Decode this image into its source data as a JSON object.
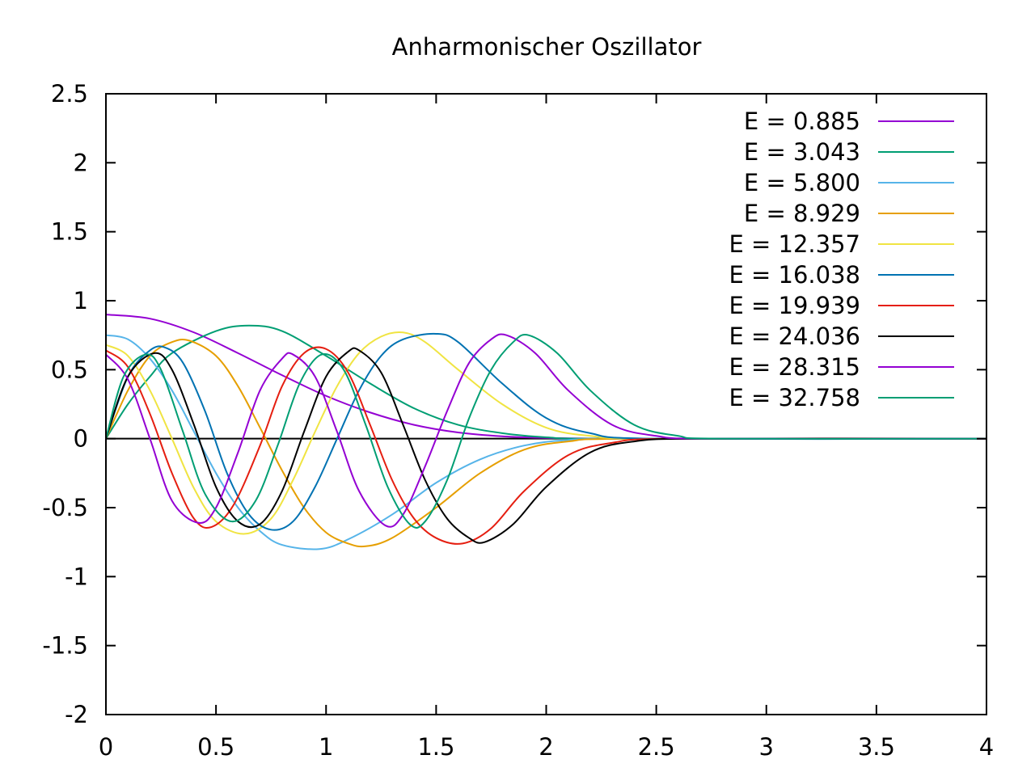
{
  "chart_data": {
    "type": "line",
    "title": "Anharmonischer Oszillator",
    "xlabel": "",
    "ylabel": "",
    "xlim": [
      0,
      4
    ],
    "ylim": [
      -2,
      2.5
    ],
    "x_ticks": [
      "0",
      "0.5",
      "1",
      "1.5",
      "2",
      "2.5",
      "3",
      "3.5",
      "4"
    ],
    "y_ticks": [
      "2.5",
      "2",
      "1.5",
      "1",
      "0.5",
      "0",
      "-0.5",
      "-1",
      "-1.5",
      "-2"
    ],
    "grid": false,
    "legend_position": "top-right",
    "zero_line": true,
    "series": [
      {
        "name": "E = 0.885",
        "color": "#9400d3",
        "points": [
          [
            0,
            0.9
          ],
          [
            0.2,
            0.87
          ],
          [
            0.4,
            0.77
          ],
          [
            0.6,
            0.62
          ],
          [
            0.8,
            0.46
          ],
          [
            1.0,
            0.31
          ],
          [
            1.2,
            0.19
          ],
          [
            1.4,
            0.1
          ],
          [
            1.6,
            0.045
          ],
          [
            1.8,
            0.017
          ],
          [
            2.0,
            0.005
          ],
          [
            2.2,
            0.001
          ],
          [
            2.5,
            0.0
          ],
          [
            4.0,
            0.0
          ]
        ]
      },
      {
        "name": "E = 3.043",
        "color": "#009e73",
        "points": [
          [
            0,
            0.0
          ],
          [
            0.1,
            0.25
          ],
          [
            0.2,
            0.45
          ],
          [
            0.3,
            0.62
          ],
          [
            0.5,
            0.78
          ],
          [
            0.65,
            0.82
          ],
          [
            0.8,
            0.78
          ],
          [
            1.0,
            0.6
          ],
          [
            1.2,
            0.4
          ],
          [
            1.4,
            0.22
          ],
          [
            1.6,
            0.1
          ],
          [
            1.8,
            0.04
          ],
          [
            2.0,
            0.01
          ],
          [
            2.3,
            0.0
          ],
          [
            4.0,
            0.0
          ]
        ]
      },
      {
        "name": "E = 5.800",
        "color": "#56b4e9",
        "points": [
          [
            0,
            0.75
          ],
          [
            0.1,
            0.72
          ],
          [
            0.2,
            0.58
          ],
          [
            0.3,
            0.35
          ],
          [
            0.4,
            0.05
          ],
          [
            0.5,
            -0.25
          ],
          [
            0.6,
            -0.5
          ],
          [
            0.7,
            -0.67
          ],
          [
            0.8,
            -0.77
          ],
          [
            0.97,
            -0.8
          ],
          [
            1.1,
            -0.73
          ],
          [
            1.3,
            -0.55
          ],
          [
            1.5,
            -0.32
          ],
          [
            1.7,
            -0.15
          ],
          [
            1.9,
            -0.05
          ],
          [
            2.1,
            -0.01
          ],
          [
            2.4,
            0.0
          ],
          [
            4.0,
            0.0
          ]
        ]
      },
      {
        "name": "E = 8.929",
        "color": "#e69f00",
        "points": [
          [
            0,
            0.0
          ],
          [
            0.1,
            0.35
          ],
          [
            0.2,
            0.6
          ],
          [
            0.3,
            0.7
          ],
          [
            0.38,
            0.71
          ],
          [
            0.5,
            0.6
          ],
          [
            0.6,
            0.38
          ],
          [
            0.7,
            0.08
          ],
          [
            0.8,
            -0.23
          ],
          [
            0.9,
            -0.5
          ],
          [
            1.0,
            -0.68
          ],
          [
            1.1,
            -0.76
          ],
          [
            1.18,
            -0.78
          ],
          [
            1.3,
            -0.72
          ],
          [
            1.5,
            -0.5
          ],
          [
            1.7,
            -0.25
          ],
          [
            1.9,
            -0.08
          ],
          [
            2.1,
            -0.02
          ],
          [
            2.4,
            0.0
          ],
          [
            4.0,
            0.0
          ]
        ]
      },
      {
        "name": "E = 12.357",
        "color": "#f0e442",
        "points": [
          [
            0,
            0.68
          ],
          [
            0.1,
            0.6
          ],
          [
            0.2,
            0.35
          ],
          [
            0.3,
            0.0
          ],
          [
            0.4,
            -0.36
          ],
          [
            0.5,
            -0.6
          ],
          [
            0.63,
            -0.69
          ],
          [
            0.75,
            -0.58
          ],
          [
            0.85,
            -0.3
          ],
          [
            0.95,
            0.05
          ],
          [
            1.05,
            0.38
          ],
          [
            1.15,
            0.62
          ],
          [
            1.25,
            0.74
          ],
          [
            1.35,
            0.77
          ],
          [
            1.45,
            0.7
          ],
          [
            1.6,
            0.5
          ],
          [
            1.8,
            0.25
          ],
          [
            2.0,
            0.08
          ],
          [
            2.2,
            0.02
          ],
          [
            2.5,
            0.0
          ],
          [
            4.0,
            0.0
          ]
        ]
      },
      {
        "name": "E = 16.038",
        "color": "#0072b2",
        "points": [
          [
            0,
            0.0
          ],
          [
            0.1,
            0.45
          ],
          [
            0.2,
            0.64
          ],
          [
            0.27,
            0.66
          ],
          [
            0.35,
            0.55
          ],
          [
            0.45,
            0.2
          ],
          [
            0.55,
            -0.25
          ],
          [
            0.65,
            -0.55
          ],
          [
            0.75,
            -0.66
          ],
          [
            0.85,
            -0.6
          ],
          [
            0.95,
            -0.35
          ],
          [
            1.05,
            0.0
          ],
          [
            1.15,
            0.35
          ],
          [
            1.25,
            0.6
          ],
          [
            1.35,
            0.72
          ],
          [
            1.5,
            0.76
          ],
          [
            1.6,
            0.7
          ],
          [
            1.8,
            0.4
          ],
          [
            2.0,
            0.15
          ],
          [
            2.2,
            0.04
          ],
          [
            2.5,
            0.0
          ],
          [
            4.0,
            0.0
          ]
        ]
      },
      {
        "name": "E = 19.939",
        "color": "#e51e10",
        "points": [
          [
            0,
            0.64
          ],
          [
            0.1,
            0.52
          ],
          [
            0.2,
            0.18
          ],
          [
            0.3,
            -0.25
          ],
          [
            0.4,
            -0.58
          ],
          [
            0.48,
            -0.64
          ],
          [
            0.58,
            -0.48
          ],
          [
            0.7,
            -0.05
          ],
          [
            0.8,
            0.38
          ],
          [
            0.9,
            0.62
          ],
          [
            1.0,
            0.65
          ],
          [
            1.1,
            0.48
          ],
          [
            1.2,
            0.1
          ],
          [
            1.3,
            -0.3
          ],
          [
            1.4,
            -0.58
          ],
          [
            1.5,
            -0.72
          ],
          [
            1.62,
            -0.76
          ],
          [
            1.75,
            -0.65
          ],
          [
            1.9,
            -0.38
          ],
          [
            2.1,
            -0.12
          ],
          [
            2.3,
            -0.03
          ],
          [
            2.6,
            0.0
          ],
          [
            4.0,
            0.0
          ]
        ]
      },
      {
        "name": "E = 24.036",
        "color": "#000000",
        "points": [
          [
            0,
            0.0
          ],
          [
            0.1,
            0.45
          ],
          [
            0.22,
            0.62
          ],
          [
            0.3,
            0.5
          ],
          [
            0.4,
            0.1
          ],
          [
            0.5,
            -0.35
          ],
          [
            0.6,
            -0.6
          ],
          [
            0.7,
            -0.62
          ],
          [
            0.8,
            -0.38
          ],
          [
            0.9,
            0.05
          ],
          [
            1.0,
            0.45
          ],
          [
            1.1,
            0.63
          ],
          [
            1.15,
            0.64
          ],
          [
            1.25,
            0.48
          ],
          [
            1.35,
            0.1
          ],
          [
            1.45,
            -0.3
          ],
          [
            1.55,
            -0.58
          ],
          [
            1.65,
            -0.72
          ],
          [
            1.72,
            -0.75
          ],
          [
            1.85,
            -0.62
          ],
          [
            2.0,
            -0.35
          ],
          [
            2.2,
            -0.1
          ],
          [
            2.4,
            -0.02
          ],
          [
            2.7,
            0.0
          ],
          [
            4.0,
            0.0
          ]
        ]
      },
      {
        "name": "E = 28.315",
        "color": "#9400d3",
        "points": [
          [
            0,
            0.61
          ],
          [
            0.1,
            0.43
          ],
          [
            0.2,
            0.0
          ],
          [
            0.3,
            -0.45
          ],
          [
            0.42,
            -0.61
          ],
          [
            0.5,
            -0.5
          ],
          [
            0.6,
            -0.1
          ],
          [
            0.7,
            0.35
          ],
          [
            0.8,
            0.58
          ],
          [
            0.85,
            0.61
          ],
          [
            0.95,
            0.45
          ],
          [
            1.05,
            0.05
          ],
          [
            1.15,
            -0.38
          ],
          [
            1.27,
            -0.63
          ],
          [
            1.35,
            -0.55
          ],
          [
            1.45,
            -0.2
          ],
          [
            1.55,
            0.2
          ],
          [
            1.65,
            0.55
          ],
          [
            1.75,
            0.72
          ],
          [
            1.82,
            0.75
          ],
          [
            1.95,
            0.62
          ],
          [
            2.1,
            0.35
          ],
          [
            2.3,
            0.1
          ],
          [
            2.5,
            0.02
          ],
          [
            2.75,
            0.0
          ],
          [
            4.0,
            0.0
          ]
        ]
      },
      {
        "name": "E = 32.758",
        "color": "#009e73",
        "points": [
          [
            0,
            0.0
          ],
          [
            0.08,
            0.45
          ],
          [
            0.18,
            0.61
          ],
          [
            0.25,
            0.5
          ],
          [
            0.35,
            0.05
          ],
          [
            0.45,
            -0.4
          ],
          [
            0.57,
            -0.6
          ],
          [
            0.68,
            -0.45
          ],
          [
            0.78,
            -0.05
          ],
          [
            0.88,
            0.4
          ],
          [
            0.98,
            0.61
          ],
          [
            1.08,
            0.5
          ],
          [
            1.18,
            0.1
          ],
          [
            1.28,
            -0.35
          ],
          [
            1.38,
            -0.62
          ],
          [
            1.45,
            -0.6
          ],
          [
            1.55,
            -0.3
          ],
          [
            1.65,
            0.15
          ],
          [
            1.75,
            0.5
          ],
          [
            1.85,
            0.7
          ],
          [
            1.92,
            0.75
          ],
          [
            2.05,
            0.62
          ],
          [
            2.2,
            0.35
          ],
          [
            2.4,
            0.1
          ],
          [
            2.6,
            0.02
          ],
          [
            2.8,
            0.0
          ],
          [
            4.0,
            0.0
          ]
        ]
      }
    ]
  }
}
